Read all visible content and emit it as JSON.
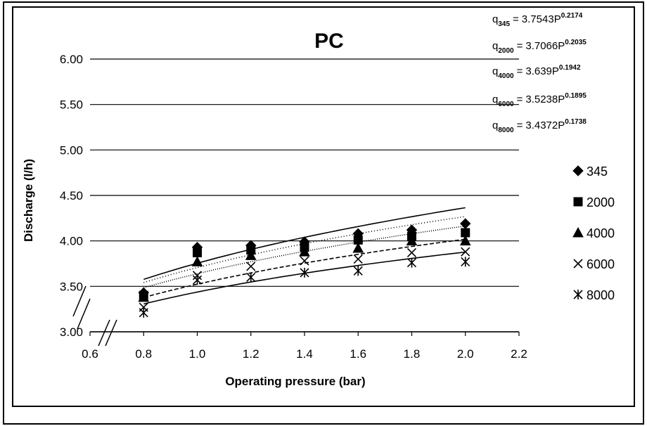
{
  "chart_data": {
    "type": "scatter",
    "title": "PC",
    "x_label": "Operating pressure (bar)",
    "y_label": "Discharge (l/h)",
    "x": [
      0.8,
      1.0,
      1.2,
      1.4,
      1.6,
      1.8,
      2.0
    ],
    "xlim": [
      0.6,
      2.2
    ],
    "xticks": [
      0.6,
      0.8,
      {
        "value": 1,
        "label": "1.0"
      },
      1.2,
      1.4,
      1.6,
      1.8,
      {
        "value": 2,
        "label": "2.0"
      },
      2.2
    ],
    "ylim": [
      3,
      6
    ],
    "yticks": [
      {
        "value": 3,
        "label": "3.00"
      },
      {
        "value": 3.5,
        "label": "3.50"
      },
      {
        "value": 4,
        "label": "4.00"
      },
      {
        "value": 4.5,
        "label": "4.50"
      },
      {
        "value": 5,
        "label": "5.00"
      },
      {
        "value": 5.5,
        "label": "5.50"
      },
      {
        "value": 6,
        "label": "6.00"
      }
    ],
    "grid": true,
    "legend": "right",
    "series": [
      {
        "name": "345",
        "color": "#000000",
        "marker": "diamond",
        "trend_dash": "none",
        "values": [
          3.43,
          3.93,
          3.95,
          3.99,
          4.08,
          4.12,
          4.19
        ]
      },
      {
        "name": "2000",
        "color": "#000000",
        "marker": "square",
        "trend_dash": "1 3",
        "values": [
          3.4,
          3.87,
          3.9,
          3.93,
          4.01,
          4.05,
          4.09
        ]
      },
      {
        "name": "4000",
        "color": "#000000",
        "marker": "triangle",
        "trend_dash": "1 2",
        "values": [
          3.38,
          3.77,
          3.84,
          3.88,
          3.92,
          4.0,
          4.0
        ]
      },
      {
        "name": "6000",
        "color": "#000000",
        "marker": "x",
        "trend_dash": "6 3",
        "values": [
          3.27,
          3.62,
          3.72,
          3.78,
          3.8,
          3.87,
          3.88
        ]
      },
      {
        "name": "8000",
        "color": "#000000",
        "marker": "star",
        "trend_dash": "none",
        "values": [
          3.21,
          3.57,
          3.6,
          3.65,
          3.67,
          3.76,
          3.77
        ]
      }
    ],
    "equations": [
      {
        "lhs": "q",
        "sub": "345",
        "sign": "=",
        "coefficient": 3.7543,
        "variable": "P",
        "exponent": 0.2174
      },
      {
        "lhs": "q",
        "sub": "2000",
        "sign": "=",
        "coefficient": 3.7066,
        "variable": "P",
        "exponent": 0.2035
      },
      {
        "lhs": "q",
        "sub": "4000",
        "sign": "=",
        "coefficient": 3.639,
        "variable": "P",
        "exponent": 0.1942
      },
      {
        "lhs": "q",
        "sub": "6000",
        "sign": "=",
        "coefficient": 3.5238,
        "variable": "P",
        "exponent": 0.1895
      },
      {
        "lhs": "q",
        "sub": "8000",
        "sign": "=",
        "coefficient": 3.4372,
        "variable": "P",
        "exponent": 0.1738
      }
    ]
  }
}
